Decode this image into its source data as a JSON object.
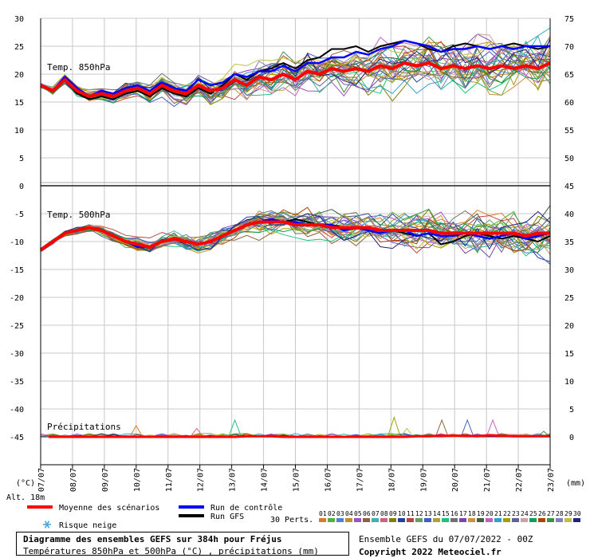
{
  "chart_data": {
    "type": "line",
    "x_ticks": [
      "07/07",
      "08/07",
      "09/07",
      "10/07",
      "11/07",
      "12/07",
      "13/07",
      "14/07",
      "15/07",
      "16/07",
      "17/07",
      "18/07",
      "19/07",
      "20/07",
      "21/07",
      "22/07",
      "23/07"
    ],
    "left_axis": {
      "unit": "(°C)",
      "ticks": [
        "30",
        "25",
        "20",
        "15",
        "10",
        "5",
        "0",
        "-5",
        "-10",
        "-15",
        "-20",
        "-25",
        "-30",
        "-35",
        "-40",
        "-45"
      ]
    },
    "right_axis": {
      "unit": "(mm)",
      "ticks": [
        "75",
        "70",
        "65",
        "60",
        "55",
        "50",
        "45",
        "40",
        "35",
        "30",
        "25",
        "20",
        "15",
        "10",
        "5",
        "0"
      ]
    },
    "panels": [
      {
        "label": "Temp. 850hPa",
        "mean": [
          18.0,
          17.0,
          19.0,
          17.0,
          16.0,
          16.5,
          16.0,
          17.0,
          17.5,
          16.5,
          18.0,
          17.0,
          16.5,
          18.0,
          17.0,
          17.5,
          19.0,
          18.0,
          19.5,
          19.0,
          20.0,
          19.0,
          20.5,
          20.0,
          21.0,
          20.5,
          21.0,
          20.5,
          21.5,
          21.0,
          22.0,
          21.5,
          22.0,
          21.0,
          21.5,
          21.0,
          21.5,
          21.0,
          21.5,
          21.0,
          21.5,
          21.0,
          22.0
        ],
        "control": [
          18.0,
          17.0,
          19.5,
          17.5,
          16.0,
          17.0,
          16.5,
          17.5,
          18.0,
          17.0,
          18.5,
          17.5,
          17.0,
          19.0,
          18.0,
          18.5,
          20.0,
          19.5,
          20.5,
          20.5,
          21.5,
          20.5,
          22.0,
          22.0,
          23.0,
          23.0,
          24.0,
          23.5,
          24.5,
          25.0,
          26.0,
          25.5,
          25.0,
          24.0,
          24.5,
          24.5,
          25.0,
          24.5,
          25.0,
          24.5,
          25.0,
          25.0,
          25.0
        ],
        "gfs": [
          18.0,
          17.0,
          19.0,
          16.5,
          15.5,
          16.0,
          15.5,
          16.5,
          17.0,
          16.0,
          17.5,
          16.5,
          16.0,
          17.5,
          16.5,
          18.0,
          20.0,
          19.0,
          20.5,
          21.0,
          22.0,
          21.0,
          22.5,
          23.0,
          24.5,
          24.5,
          25.0,
          24.0,
          25.0,
          25.5,
          26.0,
          25.5,
          24.5,
          24.0,
          25.0,
          25.5,
          25.0,
          24.5,
          25.0,
          25.5,
          25.0,
          24.5,
          25.0
        ]
      },
      {
        "label": "Temp. 500hPa",
        "mean": [
          -11.5,
          -10.0,
          -8.5,
          -8.0,
          -7.5,
          -8.0,
          -9.0,
          -10.0,
          -10.5,
          -11.0,
          -10.0,
          -9.5,
          -10.0,
          -10.5,
          -10.0,
          -9.0,
          -8.0,
          -7.0,
          -6.5,
          -6.5,
          -6.5,
          -7.0,
          -7.0,
          -7.0,
          -7.5,
          -7.5,
          -7.5,
          -7.5,
          -8.0,
          -8.0,
          -8.0,
          -8.0,
          -8.0,
          -8.5,
          -8.5,
          -8.5,
          -8.5,
          -8.5,
          -8.5,
          -8.5,
          -9.0,
          -8.5,
          -8.5
        ],
        "control": [
          -11.5,
          -10.0,
          -8.5,
          -8.0,
          -7.5,
          -8.0,
          -9.0,
          -10.0,
          -11.0,
          -11.0,
          -10.0,
          -9.5,
          -10.0,
          -10.5,
          -10.0,
          -9.0,
          -8.0,
          -7.0,
          -6.5,
          -6.0,
          -6.5,
          -6.5,
          -7.0,
          -7.0,
          -7.0,
          -8.0,
          -7.5,
          -8.0,
          -8.5,
          -8.0,
          -8.0,
          -9.0,
          -8.5,
          -9.0,
          -9.0,
          -8.5,
          -9.0,
          -9.5,
          -9.0,
          -8.5,
          -9.5,
          -9.0,
          -8.5
        ],
        "gfs": [
          -11.5,
          -10.0,
          -8.5,
          -8.0,
          -7.5,
          -8.0,
          -9.0,
          -10.0,
          -11.0,
          -11.0,
          -10.0,
          -9.5,
          -10.0,
          -10.5,
          -10.0,
          -9.0,
          -8.0,
          -7.0,
          -6.5,
          -6.0,
          -6.5,
          -6.0,
          -6.5,
          -7.0,
          -7.0,
          -7.5,
          -7.5,
          -7.5,
          -8.0,
          -8.0,
          -8.5,
          -9.0,
          -8.5,
          -10.5,
          -10.0,
          -9.0,
          -8.5,
          -9.0,
          -9.5,
          -9.0,
          -9.5,
          -10.0,
          -9.0
        ]
      },
      {
        "label": "Précipitations",
        "mean": [
          0,
          0,
          0,
          0,
          0,
          0,
          0,
          0,
          0,
          0,
          0,
          0,
          0,
          0,
          0,
          0,
          0,
          0.1,
          0.1,
          0.1,
          0,
          0,
          0,
          0,
          0,
          0,
          0,
          0,
          0,
          0,
          0,
          0.1,
          0.1,
          0.2,
          0.2,
          0.2,
          0.1,
          0.3,
          0.2,
          0.1,
          0.1,
          0.1,
          0.1
        ],
        "peaks_mm": [
          2,
          1.5,
          3,
          3.5,
          1.5,
          3,
          3,
          3,
          1
        ],
        "peaks_at_days": [
          3.0,
          4.9,
          6.1,
          11.1,
          11.5,
          12.6,
          13.4,
          14.2,
          15.8
        ]
      }
    ],
    "legend": {
      "mean": "Moyenne des scénarios",
      "control": "Run de contrôle",
      "gfs": "Run GFS",
      "snow": "Risque neige",
      "perts_label": "30 Perts.",
      "pert_ids": [
        "01",
        "02",
        "03",
        "04",
        "05",
        "06",
        "07",
        "08",
        "09",
        "10",
        "11",
        "12",
        "13",
        "14",
        "15",
        "16",
        "17",
        "18",
        "19",
        "20",
        "21",
        "22",
        "23",
        "24",
        "25",
        "26",
        "27",
        "28",
        "29",
        "30"
      ]
    },
    "altitude": "Alt. 18m"
  },
  "colors": {
    "mean": "#ff0000",
    "control": "#0000ff",
    "gfs": "#000000",
    "snow": "#4fa7d8",
    "grid": "#c8c8c8",
    "members": [
      "#e07820",
      "#50b040",
      "#5080d0",
      "#c09020",
      "#a050c0",
      "#906040",
      "#40b0b0",
      "#d06080",
      "#808000",
      "#2040a0",
      "#c04040",
      "#60a060",
      "#4060c0",
      "#b0a030",
      "#20c080",
      "#707070",
      "#8040b0",
      "#d09040",
      "#406040",
      "#c060c0",
      "#30a0d0",
      "#a0a000",
      "#6060a0",
      "#d0a0a0",
      "#00a060",
      "#b04000",
      "#409040",
      "#8080c0",
      "#c0c040",
      "#202080"
    ]
  },
  "footer": {
    "title": "Diagramme des ensembles GEFS sur 384h pour Fréjus",
    "subtitle": "Températures 850hPa et 500hPa (°C) , précipitations (mm)",
    "run": "Ensemble GEFS du 07/07/2022 - 00Z",
    "copyright": "Copyright 2022 Meteociel.fr"
  }
}
